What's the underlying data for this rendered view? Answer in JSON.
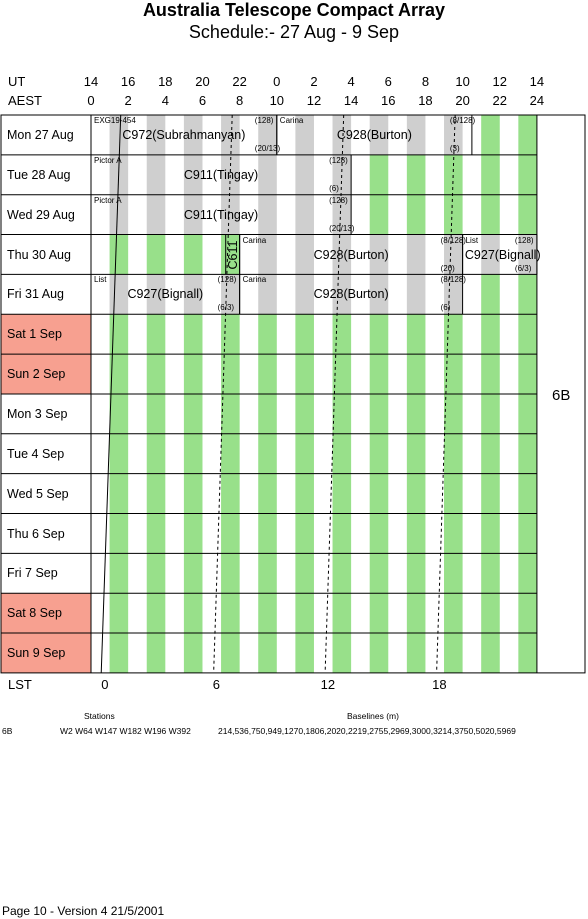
{
  "header": {
    "title": "Australia Telescope Compact Array",
    "subtitle": "Schedule:- 27 Aug - 9  Sep"
  },
  "axes": {
    "ut_label": "UT",
    "aest_label": "AEST",
    "ut_ticks": [
      "14",
      "16",
      "18",
      "20",
      "22",
      "0",
      "2",
      "4",
      "6",
      "8",
      "10",
      "12",
      "14"
    ],
    "aest_ticks": [
      "0",
      "2",
      "4",
      "6",
      "8",
      "10",
      "12",
      "14",
      "16",
      "18",
      "20",
      "22",
      "24"
    ],
    "lst_label": "LST",
    "lst_ticks": [
      "0",
      "6",
      "12",
      "18"
    ]
  },
  "days": [
    {
      "label": "Mon  27 Aug",
      "weekend": false
    },
    {
      "label": "Tue  28 Aug",
      "weekend": false
    },
    {
      "label": "Wed  29 Aug",
      "weekend": false
    },
    {
      "label": "Thu  30 Aug",
      "weekend": false
    },
    {
      "label": "Fri   31 Aug",
      "weekend": false
    },
    {
      "label": "Sat   1  Sep",
      "weekend": true
    },
    {
      "label": "Sun   2  Sep",
      "weekend": true
    },
    {
      "label": "Mon   3  Sep",
      "weekend": false
    },
    {
      "label": "Tue   4  Sep",
      "weekend": false
    },
    {
      "label": "Wed   5  Sep",
      "weekend": false
    },
    {
      "label": "Thu   6  Sep",
      "weekend": false
    },
    {
      "label": "Fri    7  Sep",
      "weekend": false
    },
    {
      "label": "Sat   8  Sep",
      "weekend": true
    },
    {
      "label": "Sun   9  Sep",
      "weekend": true
    }
  ],
  "config": "6B",
  "blocks": [
    {
      "row": 0,
      "start": 0,
      "end": 10,
      "title": "C972(Subrahmanyan)",
      "tl": "EXG19-454",
      "tr": "(128)",
      "br": "(20/13)"
    },
    {
      "row": 0,
      "start": 10,
      "end": 20.5,
      "title": "C928(Burton)",
      "tl": "Carina",
      "tr": "(8/128)",
      "br": "(3)"
    },
    {
      "row": 1,
      "start": 0,
      "end": 14,
      "title": "C911(Tingay)",
      "tl": "Pictor A",
      "tr": "(128)",
      "br": "(6)"
    },
    {
      "row": 2,
      "start": 0,
      "end": 14,
      "title": "C911(Tingay)",
      "tl": "Pictor A",
      "tr": "(128)",
      "br": "(20/13)"
    },
    {
      "row": 3,
      "start": 7.25,
      "end": 8,
      "title": "C611",
      "tl": "",
      "tr": "",
      "br": "",
      "vertical": true
    },
    {
      "row": 3,
      "start": 8,
      "end": 20,
      "title": "C928(Burton)",
      "tl": "Carina",
      "tr": "(8/128)",
      "br": "(20)"
    },
    {
      "row": 3,
      "start": 20,
      "end": 24,
      "title": "C927(Bignall)",
      "tl": "List",
      "tr": "(128)",
      "br": "(6/3)"
    },
    {
      "row": 4,
      "start": 0,
      "end": 8,
      "title": "C927(Bignall)",
      "tl": "List",
      "tr": "(128)",
      "br": "(6/3)"
    },
    {
      "row": 4,
      "start": 8,
      "end": 20,
      "title": "C928(Burton)",
      "tl": "Carina",
      "tr": "(8/128)",
      "br": "(6)"
    }
  ],
  "footer": {
    "stations_header": "Stations",
    "baselines_header": "Baselines (m)",
    "config_name": "6B",
    "stations": "W2 W64 W147 W182 W196 W392",
    "baselines": "214,536,750,949,1270,1806,2020,2219,2755,2969,3000,3214,3750,5020,5969",
    "page_info": "Page 10 - Version 4  21/5/2001"
  },
  "colors": {
    "night_band": "#98e08a",
    "busy_band": "#cfcfcf",
    "weekend": "#f7a090"
  }
}
